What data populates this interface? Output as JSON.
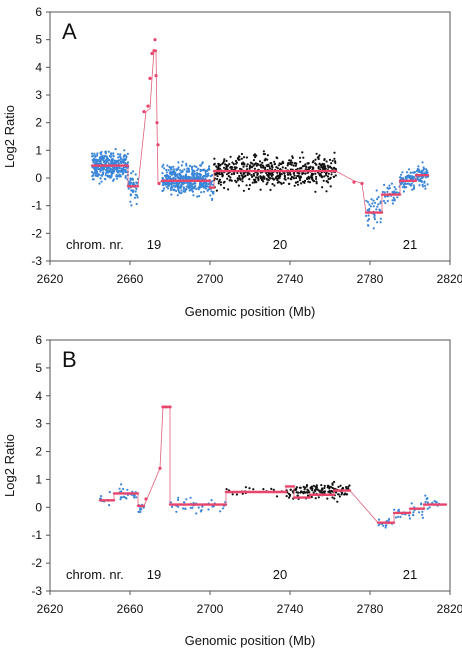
{
  "chart_data": [
    {
      "type": "scatter",
      "panel_label": "A",
      "xlabel": "Genomic position (Mb)",
      "ylabel": "Log2 Ratio",
      "xlim": [
        2620,
        2820
      ],
      "ylim": [
        -3,
        6
      ],
      "xticks": [
        2620,
        2660,
        2700,
        2740,
        2780,
        2820
      ],
      "yticks": [
        -3,
        -2,
        -1,
        0,
        1,
        2,
        3,
        4,
        5,
        6
      ],
      "chromosome_prefix": "chrom. nr.",
      "chromosomes": [
        {
          "label": "19",
          "x": 2672
        },
        {
          "label": "20",
          "x": 2735
        },
        {
          "label": "21",
          "x": 2800
        }
      ],
      "point_groups": [
        {
          "color": "#3a86d8",
          "regions": [
            {
              "x0": 2641,
              "x1": 2659,
              "mean": 0.45,
              "sd": 0.35,
              "n": 380
            },
            {
              "x0": 2659,
              "x1": 2664,
              "mean": -0.3,
              "sd": 0.4,
              "n": 50
            },
            {
              "x0": 2676,
              "x1": 2700,
              "mean": -0.05,
              "sd": 0.35,
              "n": 420
            },
            {
              "x0": 2700,
              "x1": 2702,
              "mean": -0.35,
              "sd": 0.3,
              "n": 20
            },
            {
              "x0": 2778,
              "x1": 2786,
              "mean": -1.2,
              "sd": 0.45,
              "n": 40
            },
            {
              "x0": 2786,
              "x1": 2795,
              "mean": -0.6,
              "sd": 0.25,
              "n": 40
            },
            {
              "x0": 2795,
              "x1": 2803,
              "mean": -0.05,
              "sd": 0.25,
              "n": 80
            },
            {
              "x0": 2803,
              "x1": 2809,
              "mean": 0.1,
              "sd": 0.3,
              "n": 60
            }
          ]
        },
        {
          "color": "#111111",
          "regions": [
            {
              "x0": 2702,
              "x1": 2763,
              "mean": 0.25,
              "sd": 0.4,
              "n": 560
            }
          ]
        }
      ],
      "segments": [
        {
          "x0": 2641,
          "x1": 2659,
          "y": 0.45
        },
        {
          "x0": 2659,
          "x1": 2664,
          "y": -0.3
        },
        {
          "x0": 2672.2,
          "x1": 2673,
          "y": 4.6
        },
        {
          "x0": 2676,
          "x1": 2700,
          "y": -0.1
        },
        {
          "x0": 2700,
          "x1": 2702,
          "y": -0.35
        },
        {
          "x0": 2702,
          "x1": 2763,
          "y": 0.25
        },
        {
          "x0": 2778,
          "x1": 2786,
          "y": -1.25
        },
        {
          "x0": 2786,
          "x1": 2795,
          "y": -0.6
        },
        {
          "x0": 2795,
          "x1": 2803,
          "y": -0.1
        },
        {
          "x0": 2803,
          "x1": 2809,
          "y": 0.1
        }
      ],
      "profile": [
        [
          2641,
          0.45
        ],
        [
          2659,
          0.45
        ],
        [
          2659,
          -0.3
        ],
        [
          2664,
          -0.3
        ],
        [
          2668,
          2.4
        ],
        [
          2670,
          2.5
        ],
        [
          2671,
          3.6
        ],
        [
          2672,
          4.6
        ],
        [
          2673,
          4.6
        ],
        [
          2673.5,
          2.0
        ],
        [
          2674,
          -0.2
        ],
        [
          2676,
          -0.1
        ],
        [
          2700,
          -0.1
        ],
        [
          2700,
          -0.35
        ],
        [
          2702,
          -0.35
        ],
        [
          2702,
          0.25
        ],
        [
          2763,
          0.25
        ],
        [
          2772,
          -0.1
        ],
        [
          2776,
          -0.2
        ],
        [
          2778,
          -1.25
        ],
        [
          2786,
          -1.25
        ],
        [
          2786,
          -0.6
        ],
        [
          2795,
          -0.6
        ],
        [
          2795,
          -0.1
        ],
        [
          2803,
          -0.1
        ],
        [
          2803,
          0.1
        ],
        [
          2809,
          0.1
        ]
      ],
      "key_points": [
        [
          2667,
          2.4
        ],
        [
          2669,
          2.6
        ],
        [
          2670,
          3.6
        ],
        [
          2671,
          4.5
        ],
        [
          2672,
          4.6
        ],
        [
          2672.5,
          5.0
        ],
        [
          2673,
          3.7
        ],
        [
          2673.5,
          2.0
        ],
        [
          2674,
          1.2
        ],
        [
          2674.5,
          -0.2
        ],
        [
          2772,
          -0.15
        ],
        [
          2776,
          -0.2
        ]
      ]
    },
    {
      "type": "scatter",
      "panel_label": "B",
      "xlabel": "Genomic position (Mb)",
      "ylabel": "Log2 Ratio",
      "xlim": [
        2620,
        2820
      ],
      "ylim": [
        -3,
        6
      ],
      "xticks": [
        2620,
        2660,
        2700,
        2740,
        2780,
        2820
      ],
      "yticks": [
        -3,
        -2,
        -1,
        0,
        1,
        2,
        3,
        4,
        5,
        6
      ],
      "chromosome_prefix": "chrom. nr.",
      "chromosomes": [
        {
          "label": "19",
          "x": 2672
        },
        {
          "label": "20",
          "x": 2735
        },
        {
          "label": "21",
          "x": 2800
        }
      ],
      "point_groups": [
        {
          "color": "#3a86d8",
          "regions": [
            {
              "x0": 2645,
              "x1": 2652,
              "mean": 0.3,
              "sd": 0.15,
              "n": 12
            },
            {
              "x0": 2652,
              "x1": 2664,
              "mean": 0.5,
              "sd": 0.2,
              "n": 25
            },
            {
              "x0": 2664,
              "x1": 2667,
              "mean": 0.05,
              "sd": 0.15,
              "n": 10
            },
            {
              "x0": 2680,
              "x1": 2708,
              "mean": 0.1,
              "sd": 0.2,
              "n": 45
            },
            {
              "x0": 2784,
              "x1": 2792,
              "mean": -0.55,
              "sd": 0.15,
              "n": 15
            },
            {
              "x0": 2792,
              "x1": 2800,
              "mean": -0.2,
              "sd": 0.2,
              "n": 14
            },
            {
              "x0": 2800,
              "x1": 2807,
              "mean": -0.05,
              "sd": 0.2,
              "n": 14
            },
            {
              "x0": 2807,
              "x1": 2818,
              "mean": 0.15,
              "sd": 0.15,
              "n": 16
            }
          ]
        },
        {
          "color": "#111111",
          "regions": [
            {
              "x0": 2708,
              "x1": 2738,
              "mean": 0.55,
              "sd": 0.12,
              "n": 20
            },
            {
              "x0": 2738,
              "x1": 2770,
              "mean": 0.55,
              "sd": 0.2,
              "n": 140
            }
          ]
        }
      ],
      "segments": [
        {
          "x0": 2645,
          "x1": 2652,
          "y": 0.25
        },
        {
          "x0": 2652,
          "x1": 2664,
          "y": 0.5
        },
        {
          "x0": 2664,
          "x1": 2667,
          "y": 0.05
        },
        {
          "x0": 2676.5,
          "x1": 2680,
          "y": 3.6
        },
        {
          "x0": 2680,
          "x1": 2708,
          "y": 0.1
        },
        {
          "x0": 2708,
          "x1": 2738,
          "y": 0.55
        },
        {
          "x0": 2738,
          "x1": 2742,
          "y": 0.75
        },
        {
          "x0": 2742,
          "x1": 2750,
          "y": 0.35
        },
        {
          "x0": 2750,
          "x1": 2762,
          "y": 0.45
        },
        {
          "x0": 2762,
          "x1": 2770,
          "y": 0.6
        },
        {
          "x0": 2784,
          "x1": 2792,
          "y": -0.55
        },
        {
          "x0": 2792,
          "x1": 2800,
          "y": -0.2
        },
        {
          "x0": 2800,
          "x1": 2807,
          "y": -0.05
        },
        {
          "x0": 2807,
          "x1": 2818,
          "y": 0.1
        }
      ],
      "profile": [
        [
          2645,
          0.25
        ],
        [
          2652,
          0.25
        ],
        [
          2652,
          0.5
        ],
        [
          2664,
          0.5
        ],
        [
          2664,
          0.05
        ],
        [
          2667,
          0.05
        ],
        [
          2675,
          1.4
        ],
        [
          2676.5,
          3.6
        ],
        [
          2680,
          3.6
        ],
        [
          2680,
          0.1
        ],
        [
          2708,
          0.1
        ],
        [
          2708,
          0.55
        ],
        [
          2738,
          0.55
        ],
        [
          2738,
          0.75
        ],
        [
          2742,
          0.75
        ],
        [
          2742,
          0.35
        ],
        [
          2750,
          0.35
        ],
        [
          2750,
          0.45
        ],
        [
          2762,
          0.45
        ],
        [
          2762,
          0.6
        ],
        [
          2770,
          0.6
        ],
        [
          2784,
          -0.55
        ],
        [
          2792,
          -0.55
        ],
        [
          2792,
          -0.2
        ],
        [
          2800,
          -0.2
        ],
        [
          2800,
          -0.05
        ],
        [
          2807,
          -0.05
        ],
        [
          2807,
          0.1
        ],
        [
          2818,
          0.1
        ]
      ],
      "key_points": [
        [
          2675,
          1.4
        ],
        [
          2676.5,
          3.6
        ],
        [
          2678,
          3.6
        ],
        [
          2680,
          3.6
        ],
        [
          2668,
          0.3
        ]
      ]
    }
  ]
}
